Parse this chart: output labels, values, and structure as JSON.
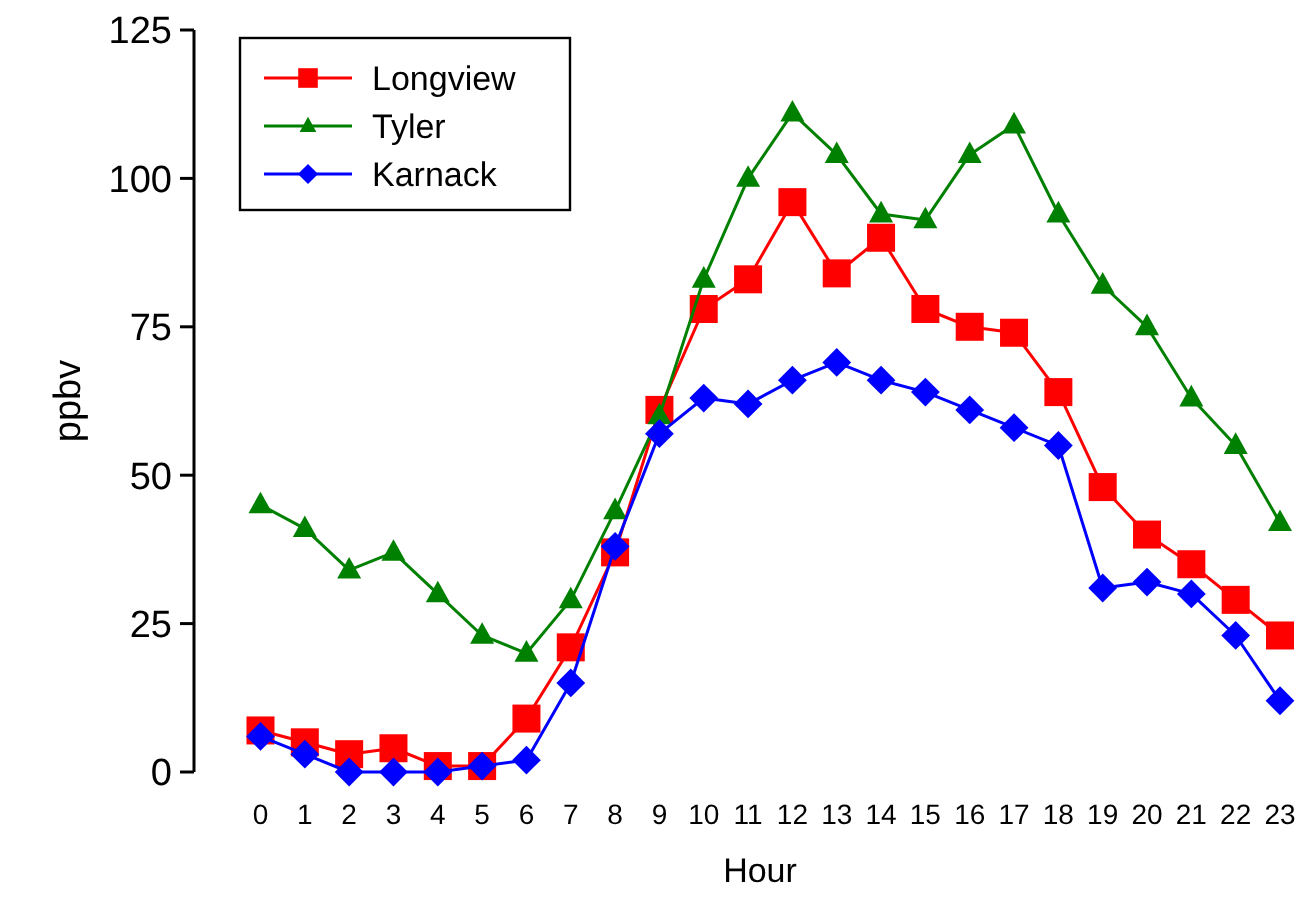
{
  "chart_data": {
    "type": "line",
    "xlabel": "Hour",
    "ylabel": "ppbv",
    "x": [
      0,
      1,
      2,
      3,
      4,
      5,
      6,
      7,
      8,
      9,
      10,
      11,
      12,
      13,
      14,
      15,
      16,
      17,
      18,
      19,
      20,
      21,
      22,
      23
    ],
    "xlim": [
      -1.5,
      23
    ],
    "xticks": [
      0,
      1,
      2,
      3,
      4,
      5,
      6,
      7,
      8,
      9,
      10,
      11,
      12,
      13,
      14,
      15,
      16,
      17,
      18,
      19,
      20,
      21,
      22,
      23
    ],
    "ylim": [
      0,
      125
    ],
    "yticks": [
      0,
      25,
      50,
      75,
      100,
      125
    ],
    "grid": false,
    "legend": "top left",
    "line_style": "solid",
    "series": [
      {
        "name": "Longview",
        "color": "#ff0000",
        "marker": "square",
        "values": [
          7,
          5,
          3,
          4,
          1,
          1,
          9,
          21,
          37,
          61,
          78,
          83,
          96,
          84,
          90,
          78,
          75,
          74,
          64,
          48,
          40,
          35,
          29,
          23
        ]
      },
      {
        "name": "Tyler",
        "color": "#008000",
        "marker": "triangle",
        "values": [
          45,
          41,
          34,
          37,
          30,
          23,
          20,
          29,
          44,
          60,
          83,
          100,
          111,
          104,
          94,
          93,
          104,
          109,
          94,
          82,
          75,
          63,
          55,
          42
        ]
      },
      {
        "name": "Karnack",
        "color": "#0000ff",
        "marker": "diamond",
        "values": [
          6,
          3,
          0,
          0,
          0,
          1,
          2,
          15,
          38,
          57,
          63,
          62,
          66,
          69,
          66,
          64,
          61,
          58,
          55,
          31,
          32,
          30,
          23,
          12
        ]
      }
    ]
  }
}
